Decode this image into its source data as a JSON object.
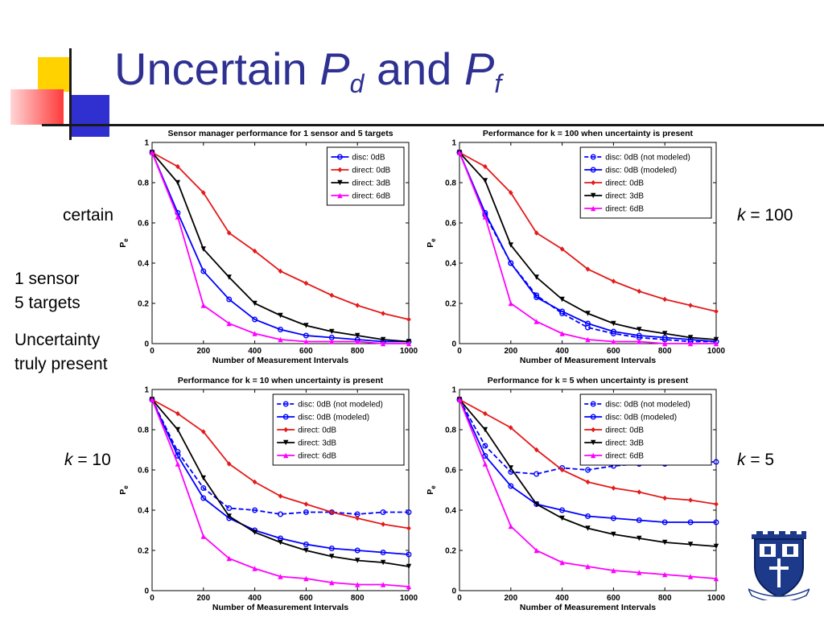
{
  "slide": {
    "title_main": "Uncertain ",
    "title_p1": "P",
    "title_sub1": "d",
    "title_and": " and ",
    "title_p2": "P",
    "title_sub2": "f"
  },
  "labels": {
    "certain": "certain",
    "sensor": "1 sensor",
    "targets": "5 targets",
    "uncertainty1": "Uncertainty",
    "uncertainty2": "truly present",
    "k100_var": "k",
    "k100_val": " = 100",
    "k10_var": "k",
    "k10_val": " = 10",
    "k5_var": "k",
    "k5_val": " = 5"
  },
  "colors": {
    "title": "#2e3192",
    "blue": "#0000ff",
    "red": "#e41a1a",
    "black": "#000000",
    "magenta": "#ff00ff"
  },
  "icons": {
    "logo": "university-shield-logo"
  },
  "chart_data": [
    {
      "type": "line",
      "title": "Sensor manager performance for 1 sensor and 5 targets",
      "xlabel": "Number of Measurement Intervals",
      "ylabel": "P",
      "ylabel_sub": "e",
      "xlim": [
        0,
        1000
      ],
      "ylim": [
        0,
        1
      ],
      "xticks": [
        "0",
        "200",
        "400",
        "600",
        "800",
        "1000"
      ],
      "yticks": [
        "0",
        "0.2",
        "0.4",
        "0.6",
        "0.8",
        "1"
      ],
      "legend_position": "top-right",
      "x": [
        0,
        100,
        200,
        300,
        400,
        500,
        600,
        700,
        800,
        900,
        1000
      ],
      "series": [
        {
          "name": "disc: 0dB",
          "color": "#0000ff",
          "marker": "circle",
          "dashed": false,
          "values": [
            0.95,
            0.65,
            0.36,
            0.22,
            0.12,
            0.07,
            0.04,
            0.03,
            0.02,
            0.01,
            0.01
          ]
        },
        {
          "name": "direct: 0dB",
          "color": "#e41a1a",
          "marker": "diamond",
          "dashed": false,
          "values": [
            0.95,
            0.88,
            0.75,
            0.55,
            0.46,
            0.36,
            0.3,
            0.24,
            0.19,
            0.15,
            0.12
          ]
        },
        {
          "name": "direct: 3dB",
          "color": "#000000",
          "marker": "triangle-down",
          "dashed": false,
          "values": [
            0.95,
            0.8,
            0.47,
            0.33,
            0.2,
            0.14,
            0.09,
            0.06,
            0.04,
            0.02,
            0.01
          ]
        },
        {
          "name": "direct: 6dB",
          "color": "#ff00ff",
          "marker": "triangle-up",
          "dashed": false,
          "values": [
            0.95,
            0.63,
            0.19,
            0.1,
            0.05,
            0.02,
            0.01,
            0.01,
            0.01,
            0.0,
            0.0
          ]
        }
      ]
    },
    {
      "type": "line",
      "title": "Performance for k = 100 when uncertainty is present",
      "xlabel": "Number of Measurement Intervals",
      "ylabel": "P",
      "ylabel_sub": "e",
      "xlim": [
        0,
        1000
      ],
      "ylim": [
        0,
        1
      ],
      "xticks": [
        "0",
        "200",
        "400",
        "600",
        "800",
        "1000"
      ],
      "yticks": [
        "0",
        "0.2",
        "0.4",
        "0.6",
        "0.8",
        "1"
      ],
      "legend_position": "top-right",
      "x": [
        0,
        100,
        200,
        300,
        400,
        500,
        600,
        700,
        800,
        900,
        1000
      ],
      "series": [
        {
          "name": "disc: 0dB (not modeled)",
          "color": "#0000ff",
          "marker": "circle",
          "dashed": true,
          "values": [
            0.95,
            0.64,
            0.4,
            0.24,
            0.15,
            0.08,
            0.05,
            0.03,
            0.02,
            0.01,
            0.01
          ]
        },
        {
          "name": "disc: 0dB (modeled)",
          "color": "#0000ff",
          "marker": "circle",
          "dashed": false,
          "values": [
            0.95,
            0.65,
            0.4,
            0.23,
            0.16,
            0.1,
            0.06,
            0.04,
            0.03,
            0.02,
            0.01
          ]
        },
        {
          "name": "direct: 0dB",
          "color": "#e41a1a",
          "marker": "diamond",
          "dashed": false,
          "values": [
            0.95,
            0.88,
            0.75,
            0.55,
            0.47,
            0.37,
            0.31,
            0.26,
            0.22,
            0.19,
            0.16
          ]
        },
        {
          "name": "direct: 3dB",
          "color": "#000000",
          "marker": "triangle-down",
          "dashed": false,
          "values": [
            0.95,
            0.81,
            0.49,
            0.33,
            0.22,
            0.15,
            0.1,
            0.07,
            0.05,
            0.03,
            0.02
          ]
        },
        {
          "name": "direct: 6dB",
          "color": "#ff00ff",
          "marker": "triangle-up",
          "dashed": false,
          "values": [
            0.95,
            0.63,
            0.2,
            0.11,
            0.05,
            0.02,
            0.01,
            0.01,
            0.0,
            0.0,
            0.0
          ]
        }
      ]
    },
    {
      "type": "line",
      "title": "Performance for k = 10 when uncertainty is present",
      "xlabel": "Number of Measurement Intervals",
      "ylabel": "P",
      "ylabel_sub": "e",
      "xlim": [
        0,
        1000
      ],
      "ylim": [
        0,
        1
      ],
      "xticks": [
        "0",
        "200",
        "400",
        "600",
        "800",
        "1000"
      ],
      "yticks": [
        "0",
        "0.2",
        "0.4",
        "0.6",
        "0.8",
        "1"
      ],
      "legend_position": "top-right",
      "x": [
        0,
        100,
        200,
        300,
        400,
        500,
        600,
        700,
        800,
        900,
        1000
      ],
      "series": [
        {
          "name": "disc: 0dB (not modeled)",
          "color": "#0000ff",
          "marker": "circle",
          "dashed": true,
          "values": [
            0.95,
            0.69,
            0.51,
            0.41,
            0.4,
            0.38,
            0.39,
            0.39,
            0.38,
            0.39,
            0.39
          ]
        },
        {
          "name": "disc: 0dB (modeled)",
          "color": "#0000ff",
          "marker": "circle",
          "dashed": false,
          "values": [
            0.95,
            0.67,
            0.46,
            0.36,
            0.3,
            0.26,
            0.23,
            0.21,
            0.2,
            0.19,
            0.18
          ]
        },
        {
          "name": "direct: 0dB",
          "color": "#e41a1a",
          "marker": "diamond",
          "dashed": false,
          "values": [
            0.95,
            0.88,
            0.79,
            0.63,
            0.54,
            0.47,
            0.43,
            0.39,
            0.36,
            0.33,
            0.31
          ]
        },
        {
          "name": "direct: 3dB",
          "color": "#000000",
          "marker": "triangle-down",
          "dashed": false,
          "values": [
            0.95,
            0.8,
            0.56,
            0.37,
            0.29,
            0.24,
            0.2,
            0.17,
            0.15,
            0.14,
            0.12
          ]
        },
        {
          "name": "direct: 6dB",
          "color": "#ff00ff",
          "marker": "triangle-up",
          "dashed": false,
          "values": [
            0.95,
            0.63,
            0.27,
            0.16,
            0.11,
            0.07,
            0.06,
            0.04,
            0.03,
            0.03,
            0.02
          ]
        }
      ]
    },
    {
      "type": "line",
      "title": "Performance for k = 5 when uncertainty is present",
      "xlabel": "Number of Measurement Intervals",
      "ylabel": "P",
      "ylabel_sub": "e",
      "xlim": [
        0,
        1000
      ],
      "ylim": [
        0,
        1
      ],
      "xticks": [
        "0",
        "200",
        "400",
        "600",
        "800",
        "1000"
      ],
      "yticks": [
        "0",
        "0.2",
        "0.4",
        "0.6",
        "0.8",
        "1"
      ],
      "legend_position": "top-right",
      "x": [
        0,
        100,
        200,
        300,
        400,
        500,
        600,
        700,
        800,
        900,
        1000
      ],
      "series": [
        {
          "name": "disc: 0dB (not modeled)",
          "color": "#0000ff",
          "marker": "circle",
          "dashed": true,
          "values": [
            0.95,
            0.72,
            0.59,
            0.58,
            0.61,
            0.6,
            0.62,
            0.63,
            0.63,
            0.64,
            0.64
          ]
        },
        {
          "name": "disc: 0dB (modeled)",
          "color": "#0000ff",
          "marker": "circle",
          "dashed": false,
          "values": [
            0.95,
            0.67,
            0.52,
            0.43,
            0.4,
            0.37,
            0.36,
            0.35,
            0.34,
            0.34,
            0.34
          ]
        },
        {
          "name": "direct: 0dB",
          "color": "#e41a1a",
          "marker": "diamond",
          "dashed": false,
          "values": [
            0.95,
            0.88,
            0.81,
            0.7,
            0.6,
            0.54,
            0.51,
            0.49,
            0.46,
            0.45,
            0.43
          ]
        },
        {
          "name": "direct: 3dB",
          "color": "#000000",
          "marker": "triangle-down",
          "dashed": false,
          "values": [
            0.95,
            0.8,
            0.61,
            0.43,
            0.36,
            0.31,
            0.28,
            0.26,
            0.24,
            0.23,
            0.22
          ]
        },
        {
          "name": "direct: 6dB",
          "color": "#ff00ff",
          "marker": "triangle-up",
          "dashed": false,
          "values": [
            0.95,
            0.63,
            0.32,
            0.2,
            0.14,
            0.12,
            0.1,
            0.09,
            0.08,
            0.07,
            0.06
          ]
        }
      ]
    }
  ]
}
